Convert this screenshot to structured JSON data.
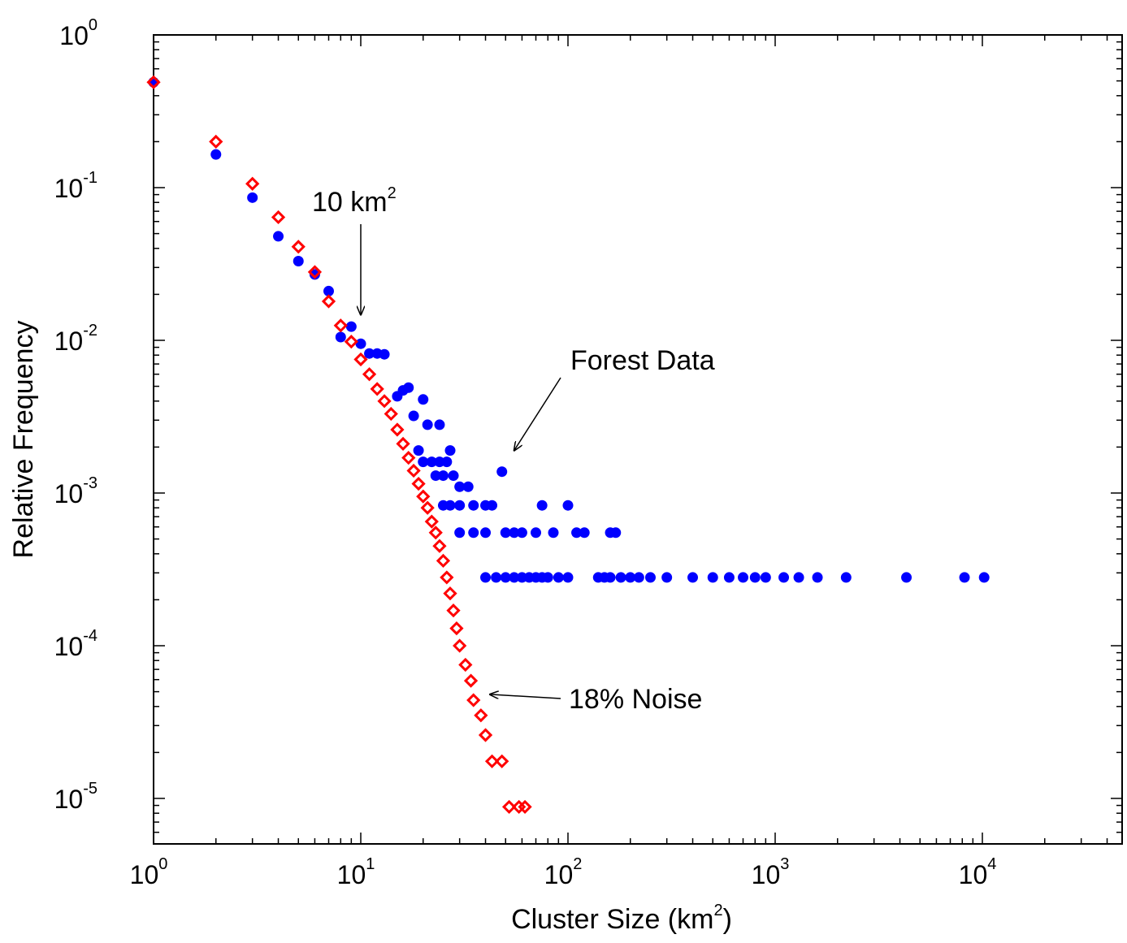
{
  "chart_data": {
    "type": "scatter",
    "title": "",
    "xlabel": "Cluster Size (km",
    "xlabel_sup": "2",
    "xlabel_tail": ")",
    "ylabel": "Relative Frequency",
    "xscale": "log",
    "yscale": "log",
    "xlim": [
      1,
      50000
    ],
    "ylim": [
      5e-06,
      1
    ],
    "grid": false,
    "x_ticks": [
      {
        "base": "10",
        "exp": "0"
      },
      {
        "base": "10",
        "exp": "1"
      },
      {
        "base": "10",
        "exp": "2"
      },
      {
        "base": "10",
        "exp": "3"
      },
      {
        "base": "10",
        "exp": "4"
      }
    ],
    "y_ticks": [
      {
        "base": "10",
        "exp": "0"
      },
      {
        "base": "10",
        "exp": "-1"
      },
      {
        "base": "10",
        "exp": "-2"
      },
      {
        "base": "10",
        "exp": "-3"
      },
      {
        "base": "10",
        "exp": "-4"
      },
      {
        "base": "10",
        "exp": "-5"
      }
    ],
    "annotations": [
      {
        "text": "10 km",
        "sup": "2",
        "arrow_to": [
          10,
          0.013
        ]
      },
      {
        "text": "Forest Data",
        "arrow_to": [
          55,
          0.0019
        ]
      },
      {
        "text": "18% Noise",
        "arrow_to": [
          42,
          4.8e-05
        ]
      }
    ],
    "series": [
      {
        "marker": "filled-circle",
        "color": "#0000ff",
        "points": [
          [
            1,
            0.49
          ],
          [
            2,
            0.165
          ],
          [
            3,
            0.086
          ],
          [
            4,
            0.048
          ],
          [
            5,
            0.033
          ],
          [
            6,
            0.027
          ],
          [
            7,
            0.021
          ],
          [
            8,
            0.0105
          ],
          [
            9,
            0.0123
          ],
          [
            10,
            0.0095
          ],
          [
            11,
            0.0082
          ],
          [
            12,
            0.0082
          ],
          [
            13,
            0.0081
          ],
          [
            15,
            0.0043
          ],
          [
            16,
            0.0047
          ],
          [
            17,
            0.0049
          ],
          [
            18,
            0.0032
          ],
          [
            20,
            0.0041
          ],
          [
            21,
            0.0028
          ],
          [
            24,
            0.0028
          ],
          [
            19,
            0.0019
          ],
          [
            20,
            0.0016
          ],
          [
            22,
            0.0016
          ],
          [
            23,
            0.0013
          ],
          [
            24,
            0.0016
          ],
          [
            25,
            0.0013
          ],
          [
            26,
            0.0016
          ],
          [
            27,
            0.0019
          ],
          [
            28,
            0.0013
          ],
          [
            30,
            0.0011
          ],
          [
            33,
            0.0011
          ],
          [
            48,
            0.00138
          ],
          [
            25,
            0.00083
          ],
          [
            27,
            0.00083
          ],
          [
            30,
            0.00083
          ],
          [
            35,
            0.00083
          ],
          [
            40,
            0.00083
          ],
          [
            43,
            0.00083
          ],
          [
            75,
            0.00083
          ],
          [
            100,
            0.00083
          ],
          [
            30,
            0.00055
          ],
          [
            35,
            0.00055
          ],
          [
            40,
            0.00055
          ],
          [
            50,
            0.00055
          ],
          [
            55,
            0.00055
          ],
          [
            60,
            0.00055
          ],
          [
            70,
            0.00055
          ],
          [
            85,
            0.00055
          ],
          [
            110,
            0.00055
          ],
          [
            120,
            0.00055
          ],
          [
            160,
            0.00055
          ],
          [
            170,
            0.00055
          ],
          [
            40,
            0.00028
          ],
          [
            45,
            0.00028
          ],
          [
            50,
            0.00028
          ],
          [
            55,
            0.00028
          ],
          [
            60,
            0.00028
          ],
          [
            65,
            0.00028
          ],
          [
            70,
            0.00028
          ],
          [
            75,
            0.00028
          ],
          [
            80,
            0.00028
          ],
          [
            90,
            0.00028
          ],
          [
            100,
            0.00028
          ],
          [
            140,
            0.00028
          ],
          [
            150,
            0.00028
          ],
          [
            160,
            0.00028
          ],
          [
            180,
            0.00028
          ],
          [
            200,
            0.00028
          ],
          [
            220,
            0.00028
          ],
          [
            250,
            0.00028
          ],
          [
            300,
            0.00028
          ],
          [
            400,
            0.00028
          ],
          [
            500,
            0.00028
          ],
          [
            600,
            0.00028
          ],
          [
            700,
            0.00028
          ],
          [
            800,
            0.00028
          ],
          [
            900,
            0.00028
          ],
          [
            1100,
            0.00028
          ],
          [
            1300,
            0.00028
          ],
          [
            1600,
            0.00028
          ],
          [
            2200,
            0.00028
          ],
          [
            4300,
            0.00028
          ],
          [
            8200,
            0.00028
          ],
          [
            10200,
            0.00028
          ]
        ]
      },
      {
        "marker": "open-diamond",
        "color": "#ff0000",
        "points": [
          [
            1,
            0.49
          ],
          [
            2,
            0.2
          ],
          [
            3,
            0.106
          ],
          [
            4,
            0.064
          ],
          [
            5,
            0.041
          ],
          [
            6,
            0.028
          ],
          [
            7,
            0.018
          ],
          [
            8,
            0.0125
          ],
          [
            9,
            0.0098
          ],
          [
            10,
            0.0075
          ],
          [
            11,
            0.006
          ],
          [
            12,
            0.0048
          ],
          [
            13,
            0.004
          ],
          [
            14,
            0.0033
          ],
          [
            15,
            0.0026
          ],
          [
            16,
            0.0021
          ],
          [
            17,
            0.0017
          ],
          [
            18,
            0.0014
          ],
          [
            19,
            0.00115
          ],
          [
            20,
            0.00095
          ],
          [
            21,
            0.0008
          ],
          [
            22,
            0.00065
          ],
          [
            23,
            0.00055
          ],
          [
            24,
            0.00045
          ],
          [
            25,
            0.00036
          ],
          [
            26,
            0.00028
          ],
          [
            27,
            0.00022
          ],
          [
            28,
            0.00017
          ],
          [
            29,
            0.00013
          ],
          [
            30,
            0.0001
          ],
          [
            32,
            7.5e-05
          ],
          [
            34,
            5.9e-05
          ],
          [
            35,
            4.4e-05
          ],
          [
            38,
            3.5e-05
          ],
          [
            40,
            2.6e-05
          ],
          [
            43,
            1.75e-05
          ],
          [
            48,
            1.75e-05
          ],
          [
            52,
            8.8e-06
          ],
          [
            58,
            8.8e-06
          ],
          [
            62,
            8.8e-06
          ]
        ]
      }
    ]
  }
}
